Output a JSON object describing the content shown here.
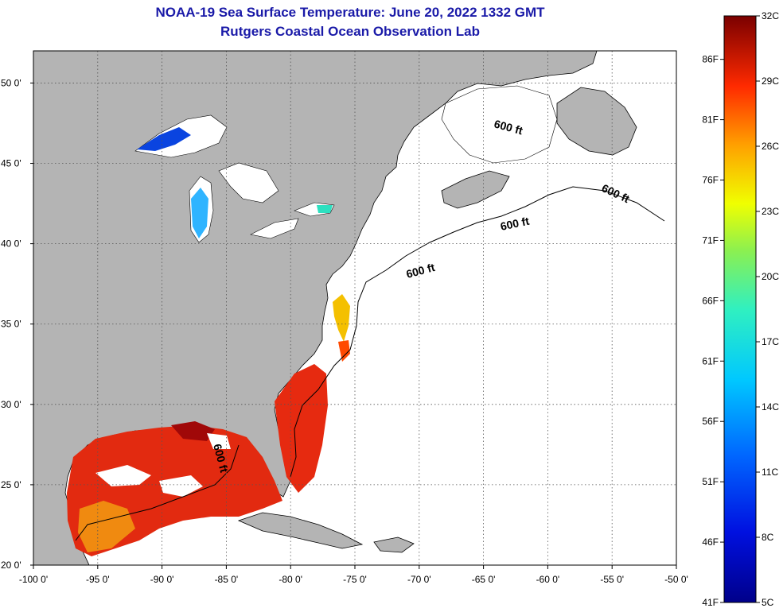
{
  "header": {
    "title_line1": "NOAA-19 Sea Surface Temperature:  June 20, 2022 1332 GMT",
    "title_line2": "Rutgers Coastal Ocean Observation Lab"
  },
  "map": {
    "lon_range": [
      -100,
      -50
    ],
    "lat_range": [
      20,
      52
    ],
    "lon_ticks": [
      "-100 0'",
      "-95 0'",
      "-90 0'",
      "-85 0'",
      "-80 0'",
      "-75 0'",
      "-70 0'",
      "-65 0'",
      "-60 0'",
      "-55 0'",
      "-50 0'"
    ],
    "lat_ticks": [
      "50 0'",
      "45 0'",
      "40 0'",
      "35 0'",
      "30 0'",
      "25 0'",
      "20 0'"
    ],
    "contour_labels": [
      "600 ft",
      "600 ft",
      "600 ft",
      "600 ft",
      "600 ft"
    ],
    "colors": {
      "land": "#b4b4b4",
      "no_data": "#ffffff",
      "grid": "#555555"
    }
  },
  "colorbar": {
    "celsius_labels": [
      "32C",
      "29C",
      "26C",
      "23C",
      "20C",
      "17C",
      "14C",
      "11C",
      "8C",
      "5C"
    ],
    "fahrenheit_labels": [
      "86F",
      "81F",
      "76F",
      "71F",
      "66F",
      "61F",
      "56F",
      "51F",
      "46F",
      "41F"
    ]
  }
}
